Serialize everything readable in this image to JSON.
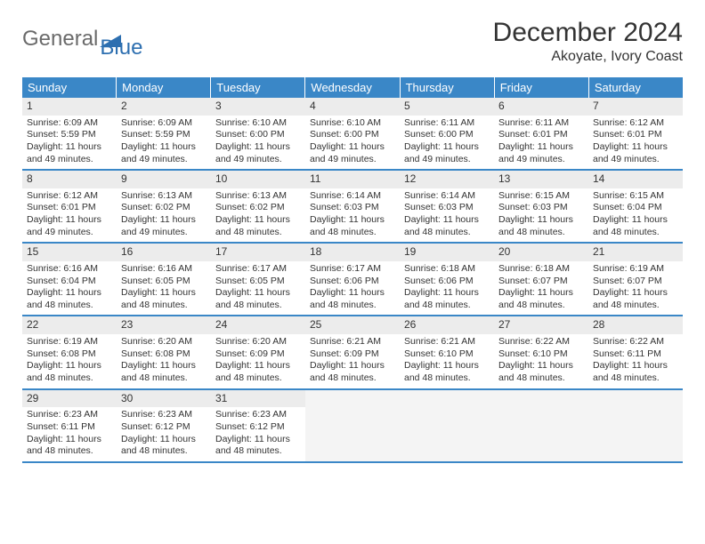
{
  "logo": {
    "part1": "General",
    "part2": "Blue"
  },
  "title": "December 2024",
  "location": "Akoyate, Ivory Coast",
  "colors": {
    "header_bg": "#3a87c7",
    "header_text": "#ffffff",
    "daynum_bg": "#ececec",
    "border": "#3a87c7",
    "text": "#333333",
    "logo_gray": "#6a6a6a",
    "logo_blue": "#2d6fb0"
  },
  "weekdays": [
    "Sunday",
    "Monday",
    "Tuesday",
    "Wednesday",
    "Thursday",
    "Friday",
    "Saturday"
  ],
  "weeks": [
    [
      {
        "n": "1",
        "sr": "6:09 AM",
        "ss": "5:59 PM",
        "dl": "11 hours and 49 minutes."
      },
      {
        "n": "2",
        "sr": "6:09 AM",
        "ss": "5:59 PM",
        "dl": "11 hours and 49 minutes."
      },
      {
        "n": "3",
        "sr": "6:10 AM",
        "ss": "6:00 PM",
        "dl": "11 hours and 49 minutes."
      },
      {
        "n": "4",
        "sr": "6:10 AM",
        "ss": "6:00 PM",
        "dl": "11 hours and 49 minutes."
      },
      {
        "n": "5",
        "sr": "6:11 AM",
        "ss": "6:00 PM",
        "dl": "11 hours and 49 minutes."
      },
      {
        "n": "6",
        "sr": "6:11 AM",
        "ss": "6:01 PM",
        "dl": "11 hours and 49 minutes."
      },
      {
        "n": "7",
        "sr": "6:12 AM",
        "ss": "6:01 PM",
        "dl": "11 hours and 49 minutes."
      }
    ],
    [
      {
        "n": "8",
        "sr": "6:12 AM",
        "ss": "6:01 PM",
        "dl": "11 hours and 49 minutes."
      },
      {
        "n": "9",
        "sr": "6:13 AM",
        "ss": "6:02 PM",
        "dl": "11 hours and 49 minutes."
      },
      {
        "n": "10",
        "sr": "6:13 AM",
        "ss": "6:02 PM",
        "dl": "11 hours and 48 minutes."
      },
      {
        "n": "11",
        "sr": "6:14 AM",
        "ss": "6:03 PM",
        "dl": "11 hours and 48 minutes."
      },
      {
        "n": "12",
        "sr": "6:14 AM",
        "ss": "6:03 PM",
        "dl": "11 hours and 48 minutes."
      },
      {
        "n": "13",
        "sr": "6:15 AM",
        "ss": "6:03 PM",
        "dl": "11 hours and 48 minutes."
      },
      {
        "n": "14",
        "sr": "6:15 AM",
        "ss": "6:04 PM",
        "dl": "11 hours and 48 minutes."
      }
    ],
    [
      {
        "n": "15",
        "sr": "6:16 AM",
        "ss": "6:04 PM",
        "dl": "11 hours and 48 minutes."
      },
      {
        "n": "16",
        "sr": "6:16 AM",
        "ss": "6:05 PM",
        "dl": "11 hours and 48 minutes."
      },
      {
        "n": "17",
        "sr": "6:17 AM",
        "ss": "6:05 PM",
        "dl": "11 hours and 48 minutes."
      },
      {
        "n": "18",
        "sr": "6:17 AM",
        "ss": "6:06 PM",
        "dl": "11 hours and 48 minutes."
      },
      {
        "n": "19",
        "sr": "6:18 AM",
        "ss": "6:06 PM",
        "dl": "11 hours and 48 minutes."
      },
      {
        "n": "20",
        "sr": "6:18 AM",
        "ss": "6:07 PM",
        "dl": "11 hours and 48 minutes."
      },
      {
        "n": "21",
        "sr": "6:19 AM",
        "ss": "6:07 PM",
        "dl": "11 hours and 48 minutes."
      }
    ],
    [
      {
        "n": "22",
        "sr": "6:19 AM",
        "ss": "6:08 PM",
        "dl": "11 hours and 48 minutes."
      },
      {
        "n": "23",
        "sr": "6:20 AM",
        "ss": "6:08 PM",
        "dl": "11 hours and 48 minutes."
      },
      {
        "n": "24",
        "sr": "6:20 AM",
        "ss": "6:09 PM",
        "dl": "11 hours and 48 minutes."
      },
      {
        "n": "25",
        "sr": "6:21 AM",
        "ss": "6:09 PM",
        "dl": "11 hours and 48 minutes."
      },
      {
        "n": "26",
        "sr": "6:21 AM",
        "ss": "6:10 PM",
        "dl": "11 hours and 48 minutes."
      },
      {
        "n": "27",
        "sr": "6:22 AM",
        "ss": "6:10 PM",
        "dl": "11 hours and 48 minutes."
      },
      {
        "n": "28",
        "sr": "6:22 AM",
        "ss": "6:11 PM",
        "dl": "11 hours and 48 minutes."
      }
    ],
    [
      {
        "n": "29",
        "sr": "6:23 AM",
        "ss": "6:11 PM",
        "dl": "11 hours and 48 minutes."
      },
      {
        "n": "30",
        "sr": "6:23 AM",
        "ss": "6:12 PM",
        "dl": "11 hours and 48 minutes."
      },
      {
        "n": "31",
        "sr": "6:23 AM",
        "ss": "6:12 PM",
        "dl": "11 hours and 48 minutes."
      },
      null,
      null,
      null,
      null
    ]
  ],
  "labels": {
    "sunrise": "Sunrise: ",
    "sunset": "Sunset: ",
    "daylight": "Daylight: "
  }
}
